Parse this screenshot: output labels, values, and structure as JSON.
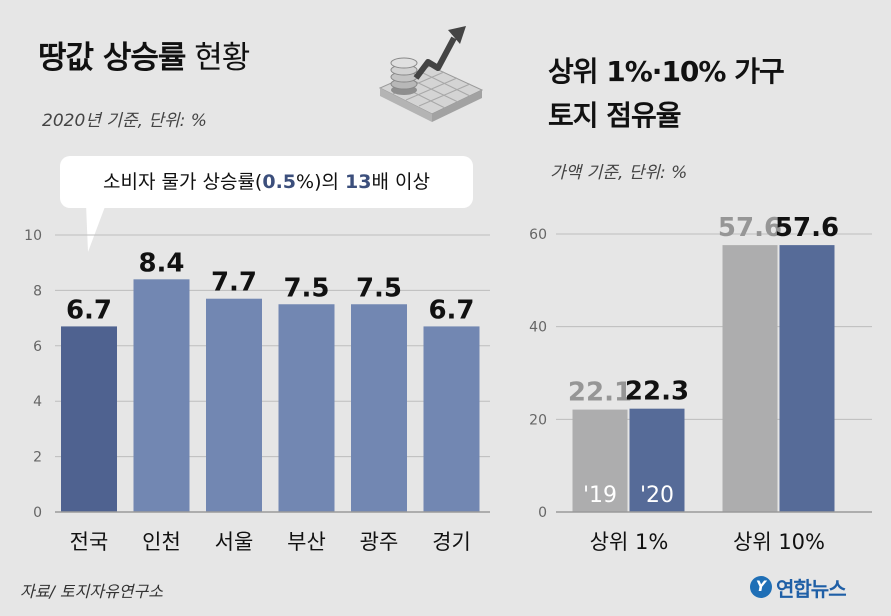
{
  "left": {
    "title_bold": "땅값 상승률",
    "title_light": "현황",
    "subtitle": "2020년 기준, 단위: %",
    "callout": {
      "pre": "소비자 물가 상승률(",
      "cpi": "0.5",
      "mid": "%)의 ",
      "times": "13",
      "post": "배 이상"
    }
  },
  "right": {
    "title_line1": "상위 1%·10% 가구",
    "title_line2": "토지 점유율",
    "subtitle": "가액 기준, 단위: %"
  },
  "source": "자료/ 토지자유연구소",
  "logo": {
    "mark": "Y",
    "name": "연합뉴스"
  },
  "colors": {
    "background": "#e6e6e6",
    "bar_first": "#4f6290",
    "bar_rest": "#7287b2",
    "bar_2019": "#adadae",
    "bar_2020": "#566b98",
    "value_grey": "#969696",
    "callout_highlight": "#3c4f7c"
  },
  "chart_data": [
    {
      "type": "bar",
      "categories": [
        "전국",
        "인천",
        "서울",
        "부산",
        "광주",
        "경기"
      ],
      "values": [
        6.7,
        8.4,
        7.7,
        7.5,
        7.5,
        6.7
      ],
      "value_labels": [
        "6.7",
        "8.4",
        "7.7",
        "7.5",
        "7.5",
        "6.7"
      ],
      "yticks": [
        "0",
        "2",
        "4",
        "6",
        "8",
        "10"
      ],
      "ylim": [
        0,
        10
      ],
      "grid": true
    },
    {
      "type": "bar",
      "categories": [
        "상위 1%",
        "상위 10%"
      ],
      "series": [
        {
          "name": "'19",
          "values": [
            22.1,
            57.6
          ],
          "value_labels": [
            "22.1",
            "57.6"
          ]
        },
        {
          "name": "'20",
          "values": [
            22.3,
            57.6
          ],
          "value_labels": [
            "22.3",
            "57.6"
          ]
        }
      ],
      "yticks": [
        "0",
        "20",
        "40",
        "60"
      ],
      "ylim": [
        0,
        60
      ],
      "grid": true
    }
  ]
}
